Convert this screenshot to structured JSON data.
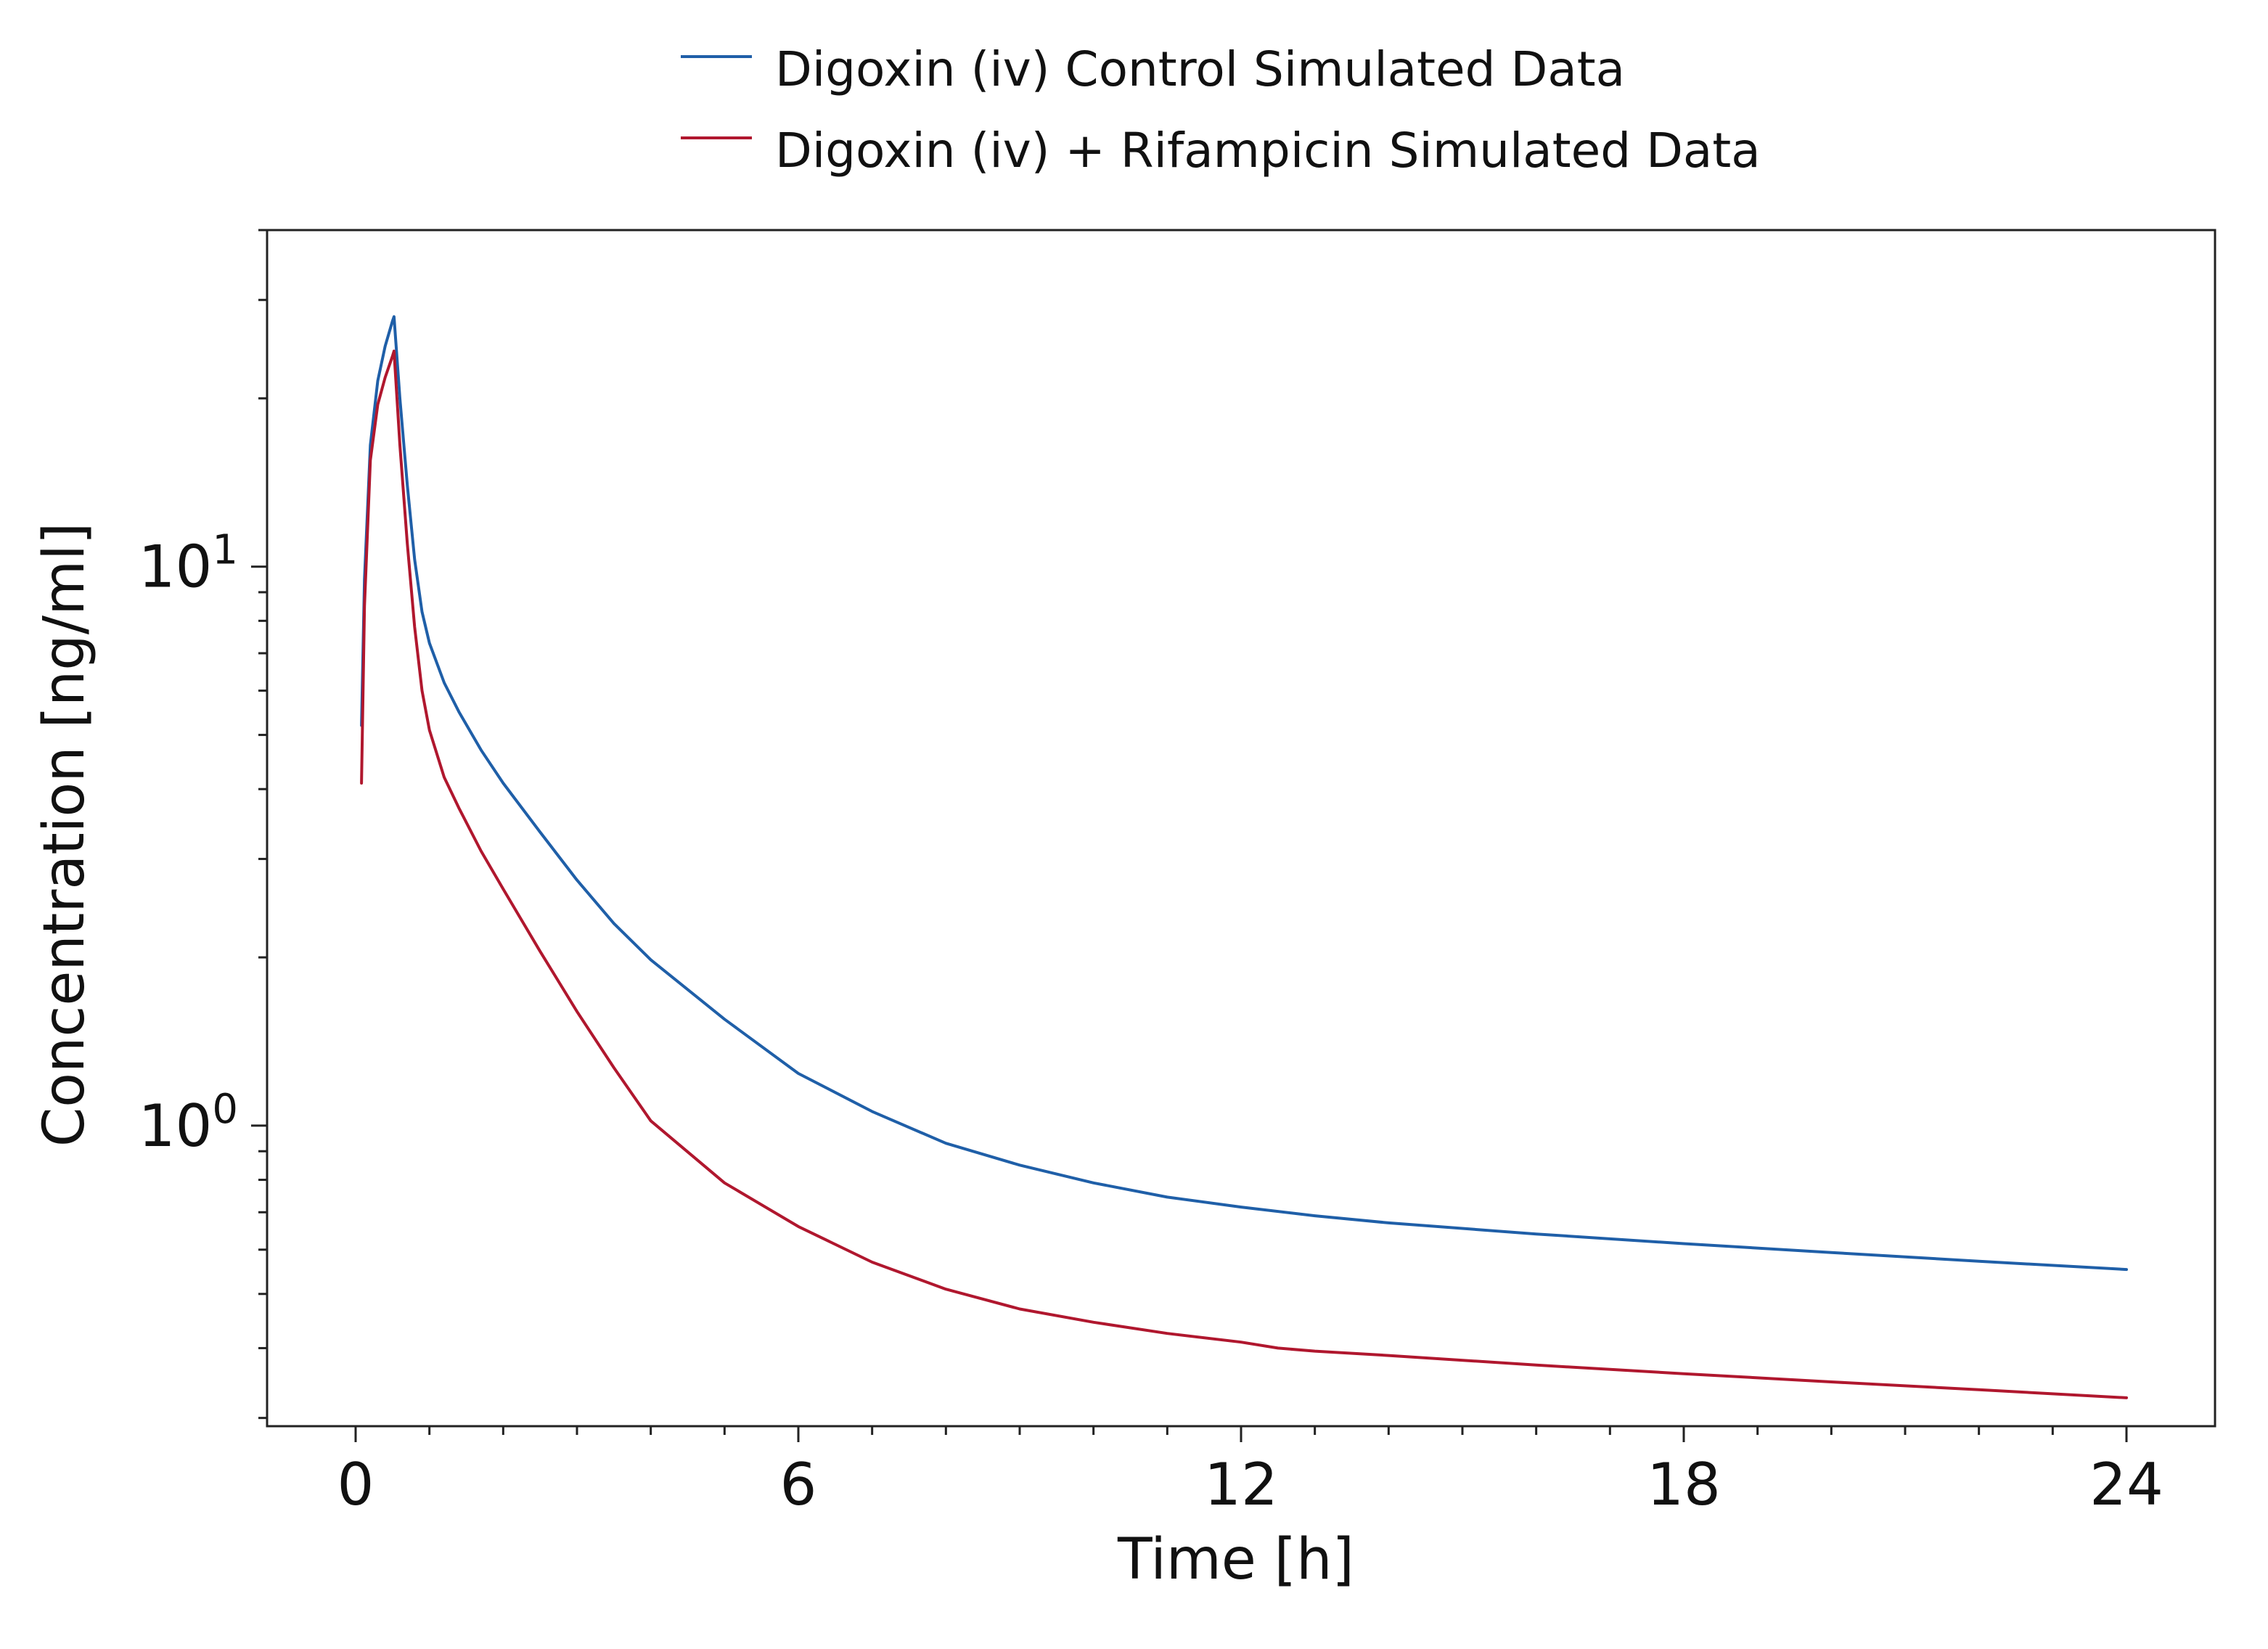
{
  "chart_data": {
    "type": "line",
    "title": "",
    "xlabel": "Time [h]",
    "ylabel": "Concentration [ng/ml]",
    "xlim": [
      -1.2,
      25.2
    ],
    "ylim": [
      0.29,
      40
    ],
    "yscale": "log",
    "xticks": [
      0,
      6,
      12,
      18,
      24
    ],
    "yticks": [
      {
        "value": 1,
        "base": "10",
        "exponent": "0"
      },
      {
        "value": 10,
        "base": "10",
        "exponent": "1"
      }
    ],
    "grid": false,
    "legend_position": "top-center",
    "series": [
      {
        "name": "Digoxin (iv) Control Simulated Data",
        "color": "#1f5fa8",
        "x": [
          0.08,
          0.12,
          0.2,
          0.3,
          0.4,
          0.5,
          0.52,
          0.6,
          0.7,
          0.8,
          0.9,
          1.0,
          1.2,
          1.4,
          1.7,
          2.0,
          2.5,
          3.0,
          3.5,
          4.0,
          5.0,
          6.0,
          7.0,
          8.0,
          9.0,
          10.0,
          11.0,
          12.0,
          13.0,
          14.0,
          16.0,
          18.0,
          20.0,
          22.0,
          24.0
        ],
        "y": [
          5.2,
          9.5,
          16.5,
          21.5,
          24.8,
          27.5,
          28.0,
          20.0,
          14.0,
          10.3,
          8.3,
          7.3,
          6.2,
          5.5,
          4.7,
          4.1,
          3.35,
          2.75,
          2.3,
          1.98,
          1.55,
          1.24,
          1.06,
          0.93,
          0.85,
          0.79,
          0.745,
          0.715,
          0.69,
          0.67,
          0.64,
          0.615,
          0.593,
          0.572,
          0.553
        ]
      },
      {
        "name": "Digoxin (iv) + Rifampicin Simulated Data",
        "color": "#b0172e",
        "x": [
          0.08,
          0.12,
          0.2,
          0.3,
          0.4,
          0.5,
          0.52,
          0.6,
          0.7,
          0.8,
          0.9,
          1.0,
          1.2,
          1.4,
          1.7,
          2.0,
          2.5,
          3.0,
          3.5,
          4.0,
          5.0,
          6.0,
          7.0,
          8.0,
          9.0,
          10.0,
          11.0,
          12.0,
          12.5,
          13.0,
          14.0,
          16.0,
          18.0,
          20.0,
          22.0,
          24.0
        ],
        "y": [
          4.1,
          8.5,
          15.5,
          19.5,
          21.8,
          23.8,
          24.3,
          16.5,
          11.0,
          7.8,
          6.0,
          5.1,
          4.2,
          3.7,
          3.1,
          2.65,
          2.05,
          1.6,
          1.27,
          1.02,
          0.79,
          0.66,
          0.57,
          0.51,
          0.47,
          0.445,
          0.425,
          0.41,
          0.4,
          0.395,
          0.388,
          0.373,
          0.36,
          0.348,
          0.337,
          0.326
        ]
      }
    ]
  }
}
